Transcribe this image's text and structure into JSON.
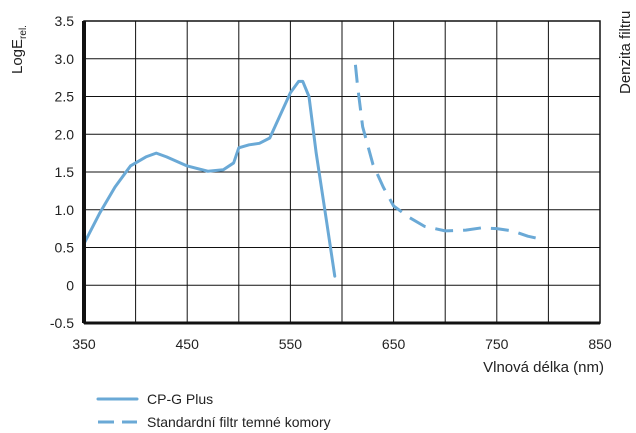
{
  "chart_data": {
    "type": "line",
    "title": "",
    "xlabel": "Vlnová délka (nm)",
    "ylabel": {
      "main": "LogE",
      "subscript": "rel."
    },
    "y2label": "Denzita filtru",
    "xlim": [
      350,
      850
    ],
    "ylim": [
      -0.5,
      3.5
    ],
    "x_ticks": [
      {
        "value": 350,
        "label": "350"
      },
      {
        "value": 450,
        "label": "450"
      },
      {
        "value": 550,
        "label": "550"
      },
      {
        "value": 650,
        "label": "650"
      },
      {
        "value": 750,
        "label": "750"
      },
      {
        "value": 850,
        "label": "850"
      }
    ],
    "x_gridlines": [
      350,
      400,
      450,
      500,
      550,
      600,
      650,
      700,
      750,
      800,
      850
    ],
    "y_ticks": [
      {
        "value": -0.5,
        "label": "-0.5"
      },
      {
        "value": 0,
        "label": "0"
      },
      {
        "value": 0.5,
        "label": "0.5"
      },
      {
        "value": 1.0,
        "label": "1.0"
      },
      {
        "value": 1.5,
        "label": "1.5"
      },
      {
        "value": 2.0,
        "label": "2.0"
      },
      {
        "value": 2.5,
        "label": "2.5"
      },
      {
        "value": 3.0,
        "label": "3.0"
      },
      {
        "value": 3.5,
        "label": "3.5"
      }
    ],
    "grid": true,
    "legend_position": "bottom-left",
    "series": [
      {
        "name": "CP-G Plus",
        "style": "solid",
        "color": "#6AA9D6",
        "points": [
          [
            350,
            0.55
          ],
          [
            365,
            0.95
          ],
          [
            380,
            1.3
          ],
          [
            395,
            1.58
          ],
          [
            410,
            1.7
          ],
          [
            420,
            1.75
          ],
          [
            430,
            1.7
          ],
          [
            450,
            1.58
          ],
          [
            470,
            1.51
          ],
          [
            485,
            1.53
          ],
          [
            495,
            1.62
          ],
          [
            500,
            1.82
          ],
          [
            510,
            1.86
          ],
          [
            520,
            1.88
          ],
          [
            530,
            1.95
          ],
          [
            540,
            2.25
          ],
          [
            550,
            2.55
          ],
          [
            558,
            2.7
          ],
          [
            562,
            2.7
          ],
          [
            568,
            2.5
          ],
          [
            575,
            1.75
          ],
          [
            585,
            0.85
          ],
          [
            593,
            0.12
          ]
        ]
      },
      {
        "name": "Standardní filtr temné komory",
        "style": "dashed",
        "color": "#6AA9D6",
        "points": [
          [
            613,
            2.92
          ],
          [
            615,
            2.65
          ],
          [
            620,
            2.1
          ],
          [
            630,
            1.6
          ],
          [
            640,
            1.3
          ],
          [
            650,
            1.05
          ],
          [
            665,
            0.9
          ],
          [
            680,
            0.78
          ],
          [
            700,
            0.72
          ],
          [
            720,
            0.73
          ],
          [
            735,
            0.76
          ],
          [
            750,
            0.75
          ],
          [
            765,
            0.72
          ],
          [
            780,
            0.65
          ],
          [
            790,
            0.62
          ]
        ]
      }
    ]
  },
  "colors": {
    "series": "#6AA9D6",
    "axis": "#111111",
    "grid": "#111111",
    "text": "#222222"
  }
}
